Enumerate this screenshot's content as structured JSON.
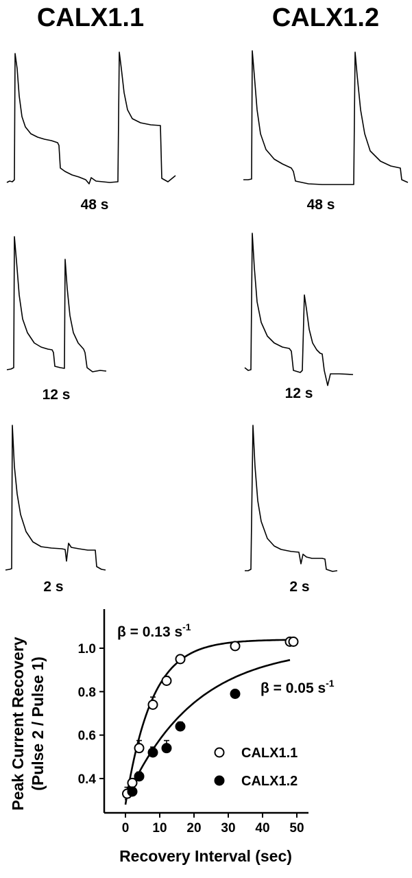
{
  "columns": [
    {
      "title": "CALX1.1"
    },
    {
      "title": "CALX1.2"
    }
  ],
  "trace_rows": [
    {
      "label": "48 s"
    },
    {
      "label": "12 s"
    },
    {
      "label": "2 s"
    }
  ],
  "chart_data": {
    "type": "scatter",
    "xlabel": "Recovery Interval (sec)",
    "ylabel_line1": "Peak Current Recovery",
    "ylabel_line2": "(Pulse 2 / Pulse 1)",
    "xlim": [
      -5,
      53
    ],
    "ylim": [
      0.28,
      1.1
    ],
    "xticks": [
      0,
      10,
      20,
      30,
      40,
      50
    ],
    "xtick_labels": [
      "0",
      "10",
      "20",
      "30",
      "40",
      "50"
    ],
    "yticks": [
      0.4,
      0.6,
      0.8,
      1.0
    ],
    "ytick_labels": [
      "0.4",
      "0.6",
      "0.8",
      "1.0"
    ],
    "series": [
      {
        "name": "CALX1.1",
        "marker": "open-circle",
        "x": [
          0.5,
          2,
          4,
          8,
          12,
          16,
          32,
          48,
          49
        ],
        "y": [
          0.33,
          0.38,
          0.54,
          0.74,
          0.85,
          0.95,
          1.01,
          1.03,
          1.03
        ],
        "err": [
          0.03,
          0.02,
          0.035,
          0.035,
          0.02,
          0.015,
          0.01,
          0.01,
          0.01
        ],
        "fit": {
          "beta": 0.13,
          "y0": 0.28,
          "ymax": 1.04
        },
        "rate_label": "β = 0.13 s",
        "rate_sup": "-1"
      },
      {
        "name": "CALX1.2",
        "marker": "filled-circle",
        "x": [
          2,
          4,
          8,
          12,
          16,
          32
        ],
        "y": [
          0.34,
          0.41,
          0.52,
          0.54,
          0.64,
          0.79
        ],
        "err": [
          0.02,
          0.02,
          0.025,
          0.035,
          0.02,
          0.01
        ],
        "fit": {
          "beta": 0.05,
          "y0": 0.3,
          "ymax": 1.01
        },
        "rate_label": "β = 0.05 s",
        "rate_sup": "-1"
      }
    ]
  }
}
